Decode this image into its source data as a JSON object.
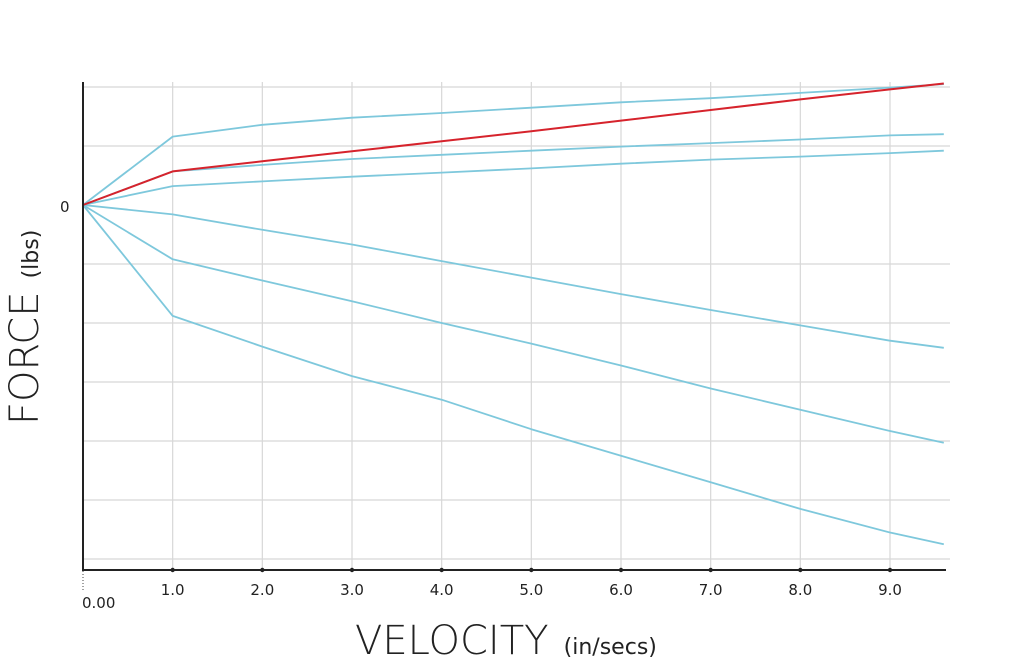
{
  "chart_data": {
    "type": "line",
    "xlabel": "VELOCITY",
    "xlabel_unit": "(in/secs)",
    "ylabel": "FORCE",
    "ylabel_unit": "(lbs)",
    "x_origin_label": "0.00",
    "y_zero_label": "0",
    "x_tick_labels": [
      "1.0",
      "2.0",
      "3.0",
      "4.0",
      "5.0",
      "6.0",
      "7.0",
      "8.0",
      "9.0"
    ],
    "x_ticks": [
      1,
      2,
      3,
      4,
      5,
      6,
      7,
      8,
      9
    ],
    "xlim": [
      0,
      9.6
    ],
    "ylim": [
      -6.3,
      2.0
    ],
    "y_gridlines": [
      2,
      1,
      -1,
      -2,
      -3,
      -4,
      -5,
      -6
    ],
    "grid": true,
    "x": [
      0,
      1,
      2,
      3,
      4,
      5,
      6,
      7,
      8,
      9,
      9.6
    ],
    "series": [
      {
        "color": "#7ec8dc",
        "values": [
          0,
          1.16,
          1.36,
          1.48,
          1.56,
          1.65,
          1.74,
          1.81,
          1.9,
          1.99,
          2.05
        ]
      },
      {
        "color": "#d6232c",
        "values": [
          0,
          0.57,
          0.74,
          0.91,
          1.08,
          1.25,
          1.43,
          1.61,
          1.79,
          1.96,
          2.06
        ]
      },
      {
        "color": "#7ec8dc",
        "values": [
          0,
          0.57,
          0.68,
          0.78,
          0.85,
          0.92,
          0.99,
          1.05,
          1.11,
          1.18,
          1.2
        ]
      },
      {
        "color": "#7ec8dc",
        "values": [
          0,
          0.32,
          0.4,
          0.48,
          0.55,
          0.62,
          0.7,
          0.77,
          0.82,
          0.88,
          0.92
        ]
      },
      {
        "color": "#7ec8dc",
        "values": [
          0,
          -0.16,
          -0.42,
          -0.67,
          -0.95,
          -1.23,
          -1.51,
          -1.78,
          -2.04,
          -2.3,
          -2.42
        ]
      },
      {
        "color": "#7ec8dc",
        "values": [
          0,
          -0.92,
          -1.28,
          -1.63,
          -2.0,
          -2.35,
          -2.72,
          -3.11,
          -3.47,
          -3.83,
          -4.03
        ]
      },
      {
        "color": "#7ec8dc",
        "values": [
          0,
          -1.88,
          -2.4,
          -2.9,
          -3.3,
          -3.8,
          -4.25,
          -4.7,
          -5.15,
          -5.55,
          -5.75
        ]
      }
    ]
  }
}
